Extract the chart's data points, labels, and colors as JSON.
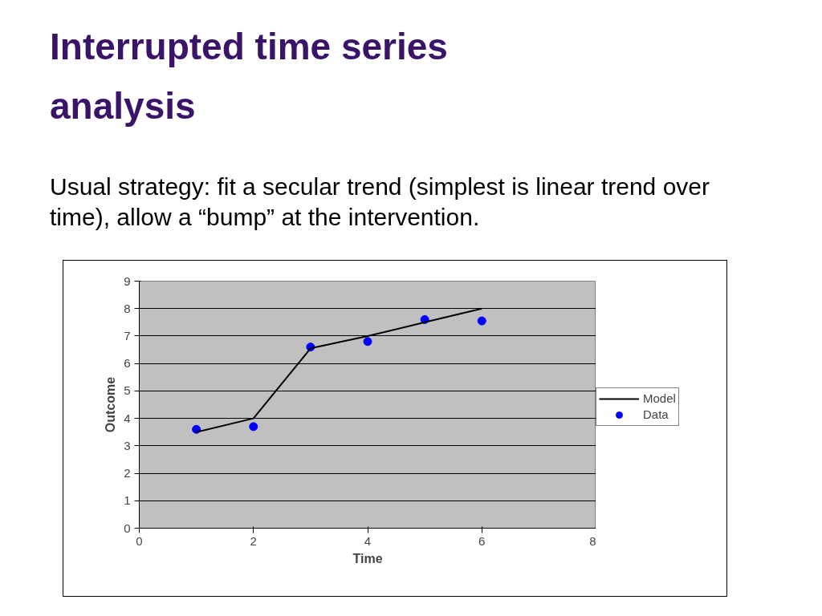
{
  "chart_data": {
    "type": "line",
    "title": "Interrupted time series analysis",
    "subtitle": "Usual strategy:  fit a secular trend (simplest is linear trend over time), allow a “bump” at the intervention.",
    "xlabel": "Time",
    "ylabel": "Outcome",
    "x": [
      1,
      2,
      3,
      4,
      5,
      6
    ],
    "series": [
      {
        "name": "Model",
        "type": "line",
        "color": "#000000",
        "line_style": "solid",
        "values": [
          3.5,
          4,
          6.55,
          7,
          7.5,
          8
        ]
      },
      {
        "name": "Data",
        "type": "scatter",
        "color": "#0000ff",
        "marker": "circle",
        "values": [
          3.6,
          3.7,
          6.6,
          6.8,
          7.6,
          7.55
        ]
      }
    ],
    "xlim": [
      0,
      8
    ],
    "xticks": [
      0,
      2,
      4,
      6,
      8
    ],
    "ylim": [
      0,
      9
    ],
    "yticks": [
      0,
      1,
      2,
      3,
      4,
      5,
      6,
      7,
      8,
      9
    ],
    "grid": "y",
    "legend": "right"
  }
}
